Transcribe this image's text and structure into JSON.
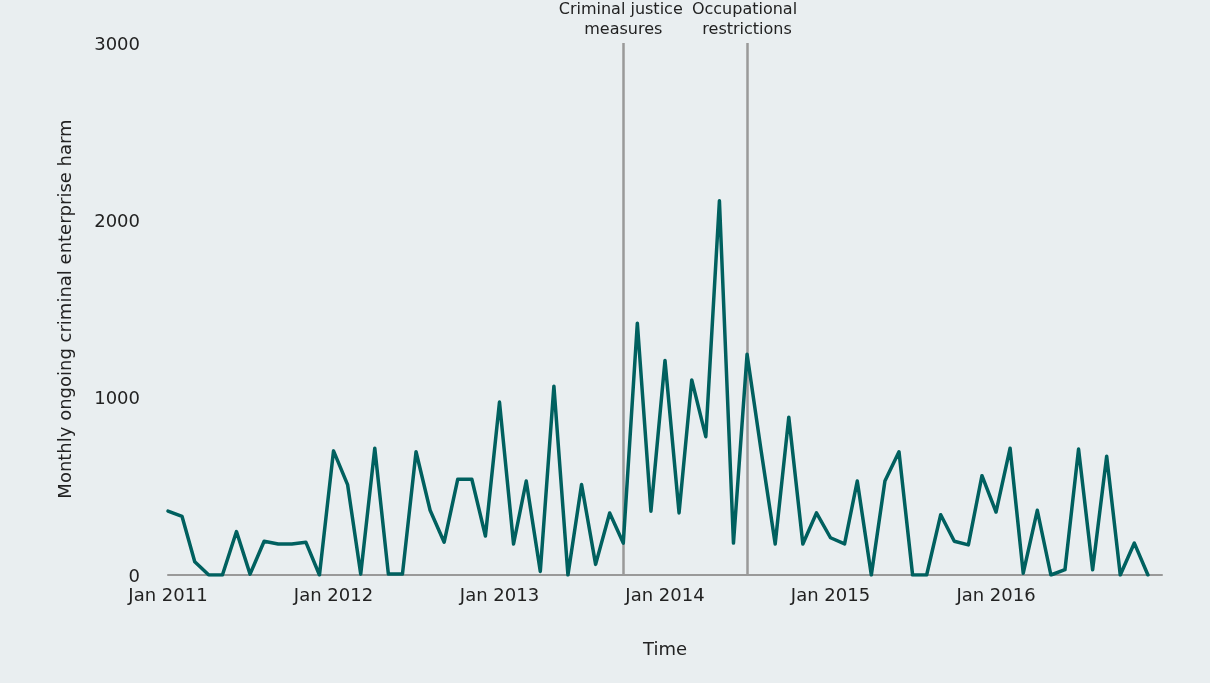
{
  "chart_data": {
    "type": "line",
    "xlabel": "Time",
    "ylabel": "Monthly ongoing criminal enterprise harm",
    "x": [
      "2011-01",
      "2011-02",
      "2011-03",
      "2011-04",
      "2011-05",
      "2011-06",
      "2011-07",
      "2011-08",
      "2011-09",
      "2011-10",
      "2011-11",
      "2011-12",
      "2012-01",
      "2012-02",
      "2012-03",
      "2012-04",
      "2012-05",
      "2012-06",
      "2012-07",
      "2012-08",
      "2012-09",
      "2012-10",
      "2012-11",
      "2012-12",
      "2013-01",
      "2013-02",
      "2013-03",
      "2013-04",
      "2013-05",
      "2013-06",
      "2013-07",
      "2013-08",
      "2013-09",
      "2013-10",
      "2013-11",
      "2013-12",
      "2014-01",
      "2014-02",
      "2014-03",
      "2014-04",
      "2014-05",
      "2014-06",
      "2014-07",
      "2014-08",
      "2014-09",
      "2014-10",
      "2014-11",
      "2014-12",
      "2015-01",
      "2015-02",
      "2015-03",
      "2015-04",
      "2015-05",
      "2015-06",
      "2015-07",
      "2015-08",
      "2015-09",
      "2015-10",
      "2015-11",
      "2015-12",
      "2016-01",
      "2016-02",
      "2016-03",
      "2016-04",
      "2016-05",
      "2016-06",
      "2016-07",
      "2016-08",
      "2016-09",
      "2016-10",
      "2016-11",
      "2016-12"
    ],
    "series": [
      {
        "color": "#00605f",
        "values": [
          360,
          330,
          75,
          0,
          0,
          245,
          5,
          190,
          175,
          175,
          185,
          0,
          700,
          510,
          5,
          715,
          5,
          5,
          695,
          365,
          185,
          540,
          540,
          220,
          975,
          175,
          530,
          20,
          1065,
          0,
          510,
          60,
          350,
          180,
          1420,
          360,
          1210,
          350,
          1100,
          780,
          2110,
          180,
          1245,
          700,
          175,
          890,
          175,
          350,
          210,
          175,
          530,
          0,
          530,
          695,
          0,
          0,
          340,
          190,
          170,
          560,
          355,
          715,
          10,
          365,
          0,
          30,
          710,
          30,
          670,
          0,
          180,
          0
        ]
      }
    ],
    "xlim": [
      "2011-01",
      "2017-01"
    ],
    "xticks": [
      {
        "value": "2011-01",
        "label": "Jan 2011"
      },
      {
        "value": "2012-01",
        "label": "Jan 2012"
      },
      {
        "value": "2013-01",
        "label": "Jan 2013"
      },
      {
        "value": "2014-01",
        "label": "Jan 2014"
      },
      {
        "value": "2015-01",
        "label": "Jan 2015"
      },
      {
        "value": "2016-01",
        "label": "Jan 2016"
      }
    ],
    "ylim": [
      0,
      3000
    ],
    "yticks": [
      0,
      1000,
      2000,
      3000
    ],
    "grid": false,
    "marker": "none",
    "line_style": "solid",
    "ref_lines": [
      {
        "axis": "x",
        "value": "2013-10",
        "label": "Criminal justice measures",
        "color": "#999999"
      },
      {
        "axis": "x",
        "value": "2014-07",
        "label": "Occupational restrictions",
        "color": "#999999"
      }
    ]
  }
}
